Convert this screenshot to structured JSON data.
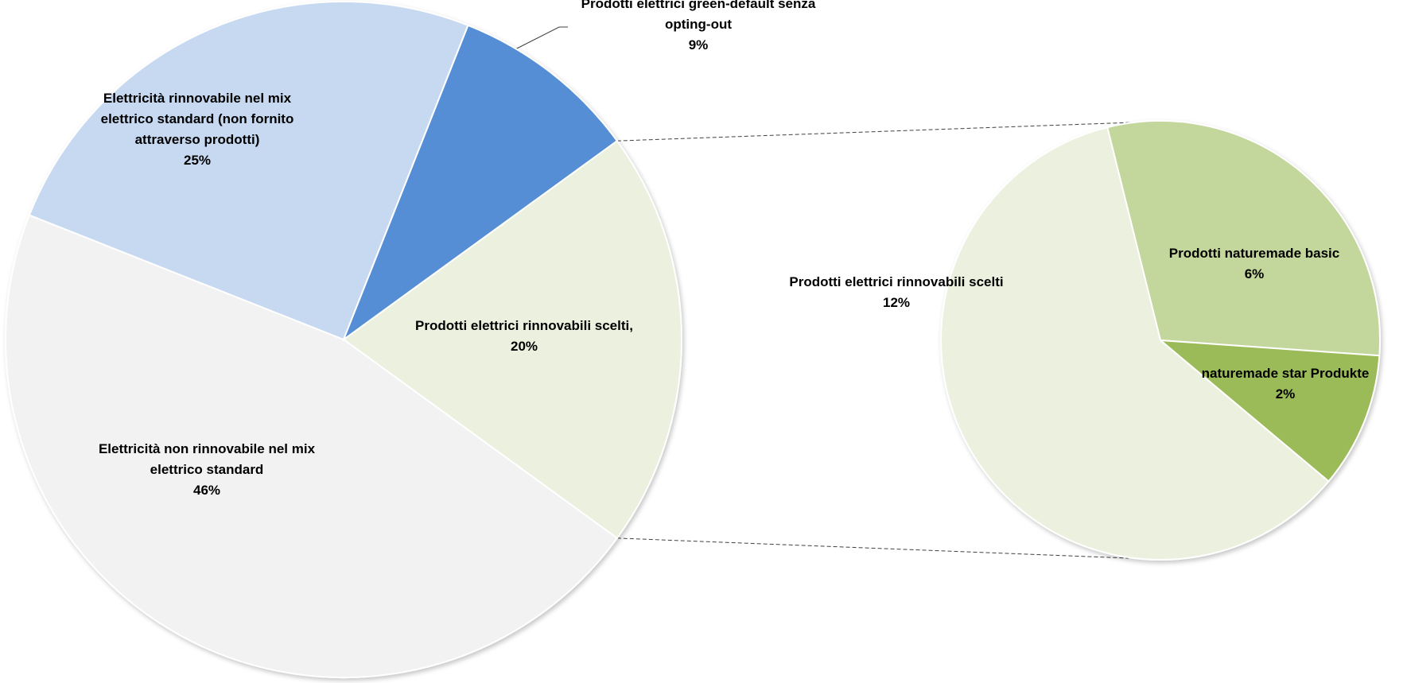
{
  "chart_data": {
    "type": "pie",
    "subtype": "pie-of-pie",
    "title": "",
    "main_pie": {
      "slices": [
        {
          "label_lines": [
            "Prodotti elettrici rinnovabili scelti,"
          ],
          "pct_text": "20%",
          "value": 20,
          "color": "#EBF1DE"
        },
        {
          "label_lines": [
            "Elettricità non rinnovabile nel mix",
            "elettrico standard"
          ],
          "pct_text": "46%",
          "value": 46,
          "color": "#F2F2F2"
        },
        {
          "label_lines": [
            "Elettricità rinnovabile nel mix",
            "elettrico standard (non fornito",
            "attraverso prodotti)"
          ],
          "pct_text": "25%",
          "value": 25,
          "color": "#C6D9F1"
        },
        {
          "label_lines": [
            "Prodotti elettrici green-default senza",
            "opting-out"
          ],
          "pct_text": "9%",
          "value": 9,
          "color": "#558ED5"
        }
      ]
    },
    "secondary_pie": {
      "slices": [
        {
          "label_lines": [
            "Prodotti elettrici rinnovabili scelti"
          ],
          "pct_text": "12%",
          "value": 12,
          "color": "#EBF1DE"
        },
        {
          "label_lines": [
            "Prodotti naturemade basic"
          ],
          "pct_text": "6%",
          "value": 6,
          "color": "#C3D69B"
        },
        {
          "label_lines": [
            "naturemade star Produkte"
          ],
          "pct_text": "2%",
          "value": 2,
          "color": "#9BBB59"
        }
      ]
    },
    "legend": "none",
    "grid": false
  }
}
